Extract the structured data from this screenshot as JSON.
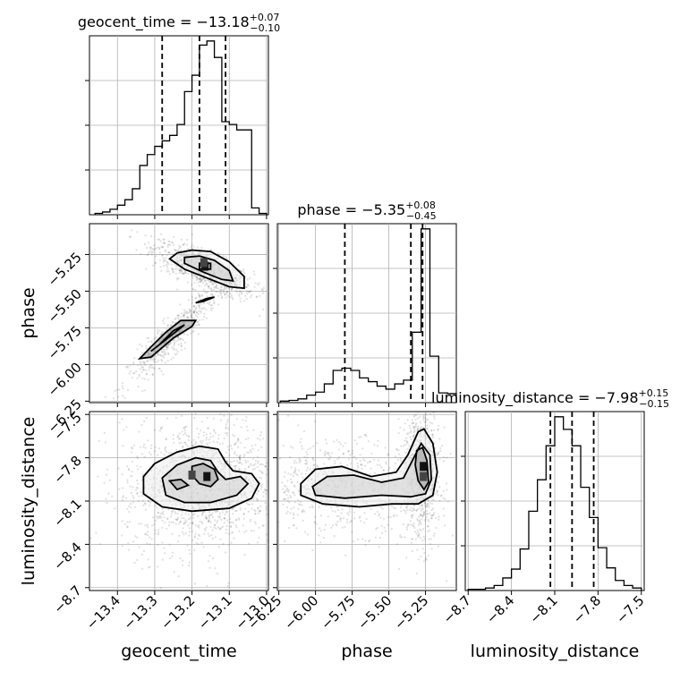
{
  "chart_data": {
    "type": "corner",
    "grid": true,
    "parameters": [
      {
        "name": "geocent_time",
        "label": "geocent_time",
        "range": [
          -13.475,
          -12.995
        ],
        "ticks": [
          -13.4,
          -13.3,
          -13.2,
          -13.1,
          -13.0
        ],
        "tick_labels": [
          "−13.4",
          "−13.3",
          "−13.2",
          "−13.1",
          "−13.0"
        ],
        "title": {
          "prefix": "geocent_time = ",
          "median": "−13.18",
          "plus": "+0.07",
          "minus": "−0.10"
        },
        "quantiles": [
          -13.28,
          -13.18,
          -13.11
        ],
        "hist_edges": [
          -13.46,
          -13.44,
          -13.42,
          -13.4,
          -13.38,
          -13.36,
          -13.34,
          -13.32,
          -13.3,
          -13.28,
          -13.26,
          -13.24,
          -13.22,
          -13.2,
          -13.18,
          -13.16,
          -13.14,
          -13.12,
          -13.1,
          -13.08,
          -13.06,
          -13.04,
          -13.02,
          -13.0
        ],
        "hist_counts": [
          1,
          2,
          4,
          7,
          11,
          19,
          36,
          44,
          50,
          54,
          58,
          66,
          90,
          102,
          124,
          127,
          115,
          68,
          66,
          62,
          62,
          5,
          1
        ]
      },
      {
        "name": "phase",
        "label": "phase",
        "range": [
          -6.26,
          -5.04
        ],
        "ticks": [
          -6.25,
          -6.0,
          -5.75,
          -5.5,
          -5.25
        ],
        "tick_labels": [
          "−6.25",
          "−6.00",
          "−5.75",
          "−5.50",
          "−5.25"
        ],
        "title": {
          "prefix": "phase = ",
          "median": "−5.35",
          "plus": "+0.08",
          "minus": "−0.45"
        },
        "quantiles": [
          -5.8,
          -5.35,
          -5.27
        ],
        "hist_edges": [
          -6.24,
          -6.18,
          -6.12,
          -6.06,
          -6.0,
          -5.94,
          -5.88,
          -5.82,
          -5.76,
          -5.7,
          -5.64,
          -5.58,
          -5.52,
          -5.46,
          -5.4,
          -5.34,
          -5.28,
          -5.22,
          -5.16,
          -5.1,
          -5.04
        ],
        "hist_counts": [
          2,
          3,
          5,
          10,
          14,
          25,
          43,
          46,
          43,
          33,
          28,
          22,
          18,
          25,
          30,
          94,
          232,
          62,
          13,
          12
        ]
      },
      {
        "name": "luminosity_distance",
        "label": "luminosity_distance",
        "range": [
          -8.72,
          -7.48
        ],
        "ticks": [
          -8.7,
          -8.4,
          -8.1,
          -7.8,
          -7.5
        ],
        "tick_labels": [
          "−8.7",
          "−8.4",
          "−8.1",
          "−7.8",
          "−7.5"
        ],
        "title": {
          "prefix": "luminosity_distance = ",
          "median": "−7.98",
          "plus": "+0.15",
          "minus": "−0.15"
        },
        "quantiles": [
          -8.13,
          -7.98,
          -7.83
        ],
        "hist_edges": [
          -8.7,
          -8.64,
          -8.58,
          -8.52,
          -8.46,
          -8.4,
          -8.34,
          -8.28,
          -8.22,
          -8.16,
          -8.1,
          -8.04,
          -7.98,
          -7.92,
          -7.86,
          -7.8,
          -7.74,
          -7.68,
          -7.62,
          -7.56,
          -7.5
        ],
        "hist_counts": [
          1,
          1,
          2,
          4,
          10,
          17,
          33,
          63,
          88,
          115,
          138,
          128,
          115,
          82,
          58,
          34,
          18,
          8,
          4,
          2
        ]
      }
    ],
    "pairs": [
      {
        "x": "geocent_time",
        "y": "phase",
        "modes": [
          {
            "cx": -13.17,
            "cy": -5.35,
            "sx": 0.05,
            "sy": 0.07,
            "rho": -0.75,
            "w": 0.6
          },
          {
            "cx": -13.25,
            "cy": -5.8,
            "sx": 0.045,
            "sy": 0.12,
            "rho": 0.92,
            "w": 0.4
          }
        ],
        "contours": [
          [
            [
              -13.24,
              -5.24
            ],
            [
              -13.2,
              -5.22
            ],
            [
              -13.15,
              -5.23
            ],
            [
              -13.1,
              -5.3
            ],
            [
              -13.06,
              -5.4
            ],
            [
              -13.06,
              -5.48
            ],
            [
              -13.1,
              -5.47
            ],
            [
              -13.15,
              -5.42
            ],
            [
              -13.22,
              -5.35
            ],
            [
              -13.26,
              -5.28
            ],
            [
              -13.24,
              -5.24
            ]
          ],
          [
            [
              -13.22,
              -5.27
            ],
            [
              -13.18,
              -5.26
            ],
            [
              -13.14,
              -5.29
            ],
            [
              -13.1,
              -5.36
            ],
            [
              -13.09,
              -5.43
            ],
            [
              -13.12,
              -5.42
            ],
            [
              -13.17,
              -5.37
            ],
            [
              -13.22,
              -5.31
            ],
            [
              -13.22,
              -5.27
            ]
          ],
          [
            [
              -13.18,
              -5.31
            ],
            [
              -13.15,
              -5.31
            ],
            [
              -13.15,
              -5.35
            ],
            [
              -13.18,
              -5.35
            ],
            [
              -13.18,
              -5.31
            ]
          ],
          [
            [
              -13.23,
              -5.7
            ],
            [
              -13.19,
              -5.7
            ],
            [
              -13.2,
              -5.74
            ],
            [
              -13.25,
              -5.82
            ],
            [
              -13.31,
              -5.95
            ],
            [
              -13.34,
              -5.96
            ],
            [
              -13.31,
              -5.88
            ],
            [
              -13.27,
              -5.78
            ],
            [
              -13.23,
              -5.7
            ]
          ],
          [
            [
              -13.22,
              -5.73
            ],
            [
              -13.25,
              -5.77
            ],
            [
              -13.29,
              -5.87
            ],
            [
              -13.31,
              -5.91
            ],
            [
              -13.28,
              -5.85
            ],
            [
              -13.24,
              -5.77
            ],
            [
              -13.22,
              -5.73
            ]
          ],
          [
            [
              -13.17,
              -5.57
            ],
            [
              -13.14,
              -5.54
            ],
            [
              -13.16,
              -5.55
            ],
            [
              -13.19,
              -5.58
            ],
            [
              -13.17,
              -5.57
            ]
          ]
        ],
        "peaks": [
          [
            -13.165,
            -5.33
          ],
          [
            -13.168,
            -5.305
          ]
        ]
      },
      {
        "x": "geocent_time",
        "y": "luminosity_distance",
        "modes": [
          {
            "cx": -13.17,
            "cy": -7.99,
            "sx": 0.08,
            "sy": 0.17,
            "rho": 0.1,
            "w": 1.0
          }
        ],
        "contours": [
          [
            [
              -13.33,
              -7.93
            ],
            [
              -13.3,
              -7.84
            ],
            [
              -13.24,
              -7.76
            ],
            [
              -13.18,
              -7.72
            ],
            [
              -13.13,
              -7.74
            ],
            [
              -13.11,
              -7.83
            ],
            [
              -13.09,
              -7.89
            ],
            [
              -13.04,
              -7.91
            ],
            [
              -13.02,
              -7.98
            ],
            [
              -13.04,
              -8.08
            ],
            [
              -13.1,
              -8.15
            ],
            [
              -13.2,
              -8.17
            ],
            [
              -13.28,
              -8.14
            ],
            [
              -13.33,
              -8.05
            ],
            [
              -13.33,
              -7.93
            ]
          ],
          [
            [
              -13.28,
              -7.94
            ],
            [
              -13.24,
              -7.85
            ],
            [
              -13.19,
              -7.8
            ],
            [
              -13.15,
              -7.82
            ],
            [
              -13.13,
              -7.9
            ],
            [
              -13.11,
              -7.95
            ],
            [
              -13.07,
              -7.93
            ],
            [
              -13.05,
              -7.98
            ],
            [
              -13.08,
              -8.06
            ],
            [
              -13.15,
              -8.11
            ],
            [
              -13.22,
              -8.11
            ],
            [
              -13.27,
              -8.06
            ],
            [
              -13.28,
              -7.94
            ]
          ],
          [
            [
              -13.2,
              -7.86
            ],
            [
              -13.17,
              -7.84
            ],
            [
              -13.14,
              -7.88
            ],
            [
              -13.13,
              -7.95
            ],
            [
              -13.15,
              -8.0
            ],
            [
              -13.18,
              -7.98
            ],
            [
              -13.2,
              -7.92
            ],
            [
              -13.2,
              -7.86
            ]
          ],
          [
            [
              -13.26,
              -7.96
            ],
            [
              -13.23,
              -7.95
            ],
            [
              -13.21,
              -7.99
            ],
            [
              -13.24,
              -8.02
            ],
            [
              -13.26,
              -7.96
            ]
          ]
        ],
        "peaks": [
          [
            -13.16,
            -7.93
          ],
          [
            -13.2,
            -7.92
          ]
        ]
      },
      {
        "x": "phase",
        "y": "luminosity_distance",
        "modes": [
          {
            "cx": -5.28,
            "cy": -7.92,
            "sx": 0.05,
            "sy": 0.18,
            "rho": 0.0,
            "w": 0.55
          },
          {
            "cx": -5.85,
            "cy": -8.0,
            "sx": 0.2,
            "sy": 0.12,
            "rho": 0.0,
            "w": 0.45
          }
        ],
        "contours": [
          [
            [
              -6.1,
              -7.98
            ],
            [
              -6.0,
              -7.88
            ],
            [
              -5.82,
              -7.86
            ],
            [
              -5.62,
              -7.93
            ],
            [
              -5.45,
              -7.9
            ],
            [
              -5.37,
              -7.78
            ],
            [
              -5.3,
              -7.62
            ],
            [
              -5.26,
              -7.6
            ],
            [
              -5.2,
              -7.7
            ],
            [
              -5.17,
              -7.9
            ],
            [
              -5.2,
              -8.06
            ],
            [
              -5.3,
              -8.12
            ],
            [
              -5.48,
              -8.12
            ],
            [
              -5.7,
              -8.14
            ],
            [
              -5.95,
              -8.12
            ],
            [
              -6.1,
              -8.06
            ],
            [
              -6.1,
              -7.98
            ]
          ],
          [
            [
              -6.02,
              -8.0
            ],
            [
              -5.92,
              -7.93
            ],
            [
              -5.74,
              -7.92
            ],
            [
              -5.55,
              -7.97
            ],
            [
              -5.4,
              -7.94
            ],
            [
              -5.33,
              -7.8
            ],
            [
              -5.28,
              -7.7
            ],
            [
              -5.22,
              -7.78
            ],
            [
              -5.21,
              -7.95
            ],
            [
              -5.25,
              -8.05
            ],
            [
              -5.35,
              -8.07
            ],
            [
              -5.55,
              -8.06
            ],
            [
              -5.8,
              -8.08
            ],
            [
              -6.0,
              -8.06
            ],
            [
              -6.02,
              -8.0
            ]
          ],
          [
            [
              -5.31,
              -7.75
            ],
            [
              -5.27,
              -7.73
            ],
            [
              -5.24,
              -7.82
            ],
            [
              -5.23,
              -7.97
            ],
            [
              -5.26,
              -8.02
            ],
            [
              -5.3,
              -7.96
            ],
            [
              -5.32,
              -7.85
            ],
            [
              -5.31,
              -7.75
            ]
          ]
        ],
        "peaks": [
          [
            -5.265,
            -7.86
          ],
          [
            -5.265,
            -7.93
          ]
        ]
      }
    ]
  }
}
